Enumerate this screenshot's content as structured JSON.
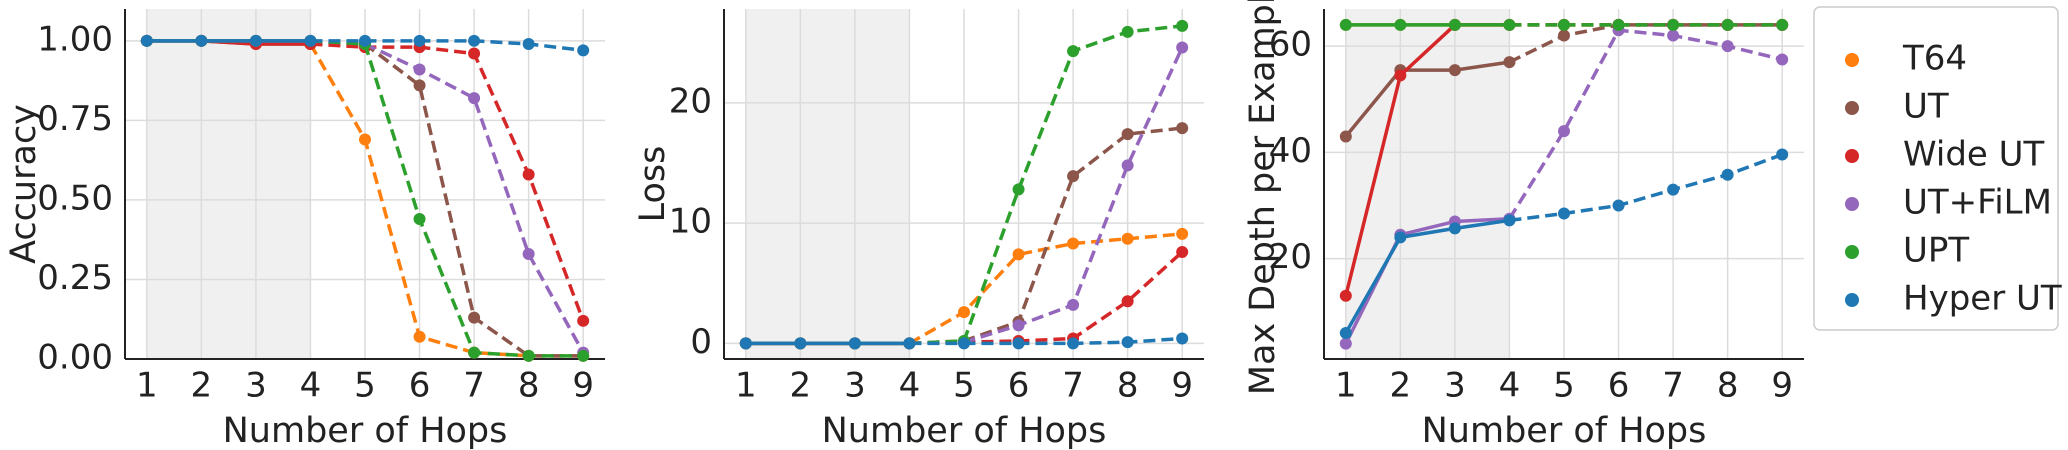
{
  "chart_data": [
    {
      "type": "line",
      "xlabel": "Number of Hops",
      "ylabel": "Accuracy",
      "x": [
        1,
        2,
        3,
        4,
        5,
        6,
        7,
        8,
        9
      ],
      "xlim": [
        0.6,
        9.4
      ],
      "xticks": [
        1,
        2,
        3,
        4,
        5,
        6,
        7,
        8,
        9
      ],
      "ylim": [
        0,
        1.1
      ],
      "yticks": [
        {
          "value": 0,
          "label": "0.00"
        },
        {
          "value": 0.25,
          "label": "0.25"
        },
        {
          "value": 0.5,
          "label": "0.50"
        },
        {
          "value": 0.75,
          "label": "0.75"
        },
        {
          "value": 1,
          "label": "1.00"
        }
      ],
      "grid": true,
      "shaded_xrange": [
        1,
        4
      ],
      "series": [
        {
          "name": "T64",
          "color": "#ff7f0e",
          "values": [
            1,
            1,
            1,
            0.99,
            0.69,
            0.07,
            0.02,
            0.01,
            0.01
          ]
        },
        {
          "name": "UT",
          "color": "#8c564b",
          "values": [
            1,
            1,
            0.99,
            0.99,
            0.99,
            0.86,
            0.13,
            0.01,
            0.01
          ]
        },
        {
          "name": "Wide UT",
          "color": "#d62728",
          "values": [
            1,
            1,
            0.99,
            0.99,
            0.98,
            0.98,
            0.96,
            0.58,
            0.12
          ]
        },
        {
          "name": "UT+FiLM",
          "color": "#9467bd",
          "values": [
            1,
            1,
            1,
            1,
            0.99,
            0.91,
            0.82,
            0.33,
            0.02
          ]
        },
        {
          "name": "UPT",
          "color": "#2ca02c",
          "values": [
            1,
            1,
            1,
            1,
            0.99,
            0.44,
            0.02,
            0.01,
            0.01
          ]
        },
        {
          "name": "Hyper UT",
          "color": "#1f77b4",
          "values": [
            1,
            1,
            1,
            1,
            1,
            1,
            1,
            0.99,
            0.97
          ]
        }
      ]
    },
    {
      "type": "line",
      "xlabel": "Number of Hops",
      "ylabel": "Loss",
      "x": [
        1,
        2,
        3,
        4,
        5,
        6,
        7,
        8,
        9
      ],
      "xlim": [
        0.6,
        9.4
      ],
      "xticks": [
        1,
        2,
        3,
        4,
        5,
        6,
        7,
        8,
        9
      ],
      "ylim": [
        -1.3,
        27.8
      ],
      "yticks": [
        0,
        10,
        20
      ],
      "grid": true,
      "shaded_xrange": [
        1,
        4
      ],
      "series": [
        {
          "name": "T64",
          "color": "#ff7f0e",
          "values": [
            0,
            0,
            0,
            0,
            2.6,
            7.4,
            8.3,
            8.7,
            9.1
          ]
        },
        {
          "name": "UT",
          "color": "#8c564b",
          "values": [
            0,
            0,
            0,
            0,
            0.2,
            1.8,
            13.9,
            17.4,
            17.9
          ]
        },
        {
          "name": "Wide UT",
          "color": "#d62728",
          "values": [
            0,
            0,
            0,
            0,
            0.1,
            0.2,
            0.4,
            3.5,
            7.6
          ]
        },
        {
          "name": "UT+FiLM",
          "color": "#9467bd",
          "values": [
            0,
            0,
            0,
            0,
            0.1,
            1.5,
            3.2,
            14.8,
            24.6
          ]
        },
        {
          "name": "UPT",
          "color": "#2ca02c",
          "values": [
            0,
            0,
            0,
            0,
            0.2,
            12.8,
            24.3,
            25.9,
            26.4
          ]
        },
        {
          "name": "Hyper UT",
          "color": "#1f77b4",
          "values": [
            0,
            0,
            0,
            0,
            0,
            0,
            0,
            0.1,
            0.4
          ]
        }
      ]
    },
    {
      "type": "line",
      "xlabel": "Number of Hops",
      "ylabel": "Max Depth per Example",
      "x": [
        1,
        2,
        3,
        4,
        5,
        6,
        7,
        8,
        9
      ],
      "xlim": [
        0.6,
        9.4
      ],
      "xticks": [
        1,
        2,
        3,
        4,
        5,
        6,
        7,
        8,
        9
      ],
      "ylim": [
        1.1,
        67
      ],
      "yticks": [
        20,
        40,
        60
      ],
      "grid": true,
      "shaded_xrange": [
        1,
        4
      ],
      "series": [
        {
          "name": "T64",
          "color": "#ff7f0e",
          "values": [
            64,
            64,
            64,
            64,
            64,
            64,
            64,
            64,
            64
          ]
        },
        {
          "name": "UT",
          "color": "#8c564b",
          "values": [
            43,
            55.5,
            55.5,
            57,
            62,
            64,
            64,
            64,
            64
          ]
        },
        {
          "name": "Wide UT",
          "color": "#d62728",
          "values": [
            13,
            54.5,
            64,
            64,
            64,
            64,
            64,
            64,
            64
          ]
        },
        {
          "name": "UT+FiLM",
          "color": "#9467bd",
          "values": [
            4,
            24.5,
            27,
            27.5,
            44,
            63,
            62,
            60,
            57.5
          ]
        },
        {
          "name": "UPT",
          "color": "#2ca02c",
          "values": [
            64,
            64,
            64,
            64,
            64,
            64,
            64,
            64,
            64
          ]
        },
        {
          "name": "Hyper UT",
          "color": "#1f77b4",
          "values": [
            6,
            24,
            25.7,
            27.2,
            28.5,
            30,
            33,
            35.8,
            39.6
          ]
        }
      ]
    }
  ]
}
